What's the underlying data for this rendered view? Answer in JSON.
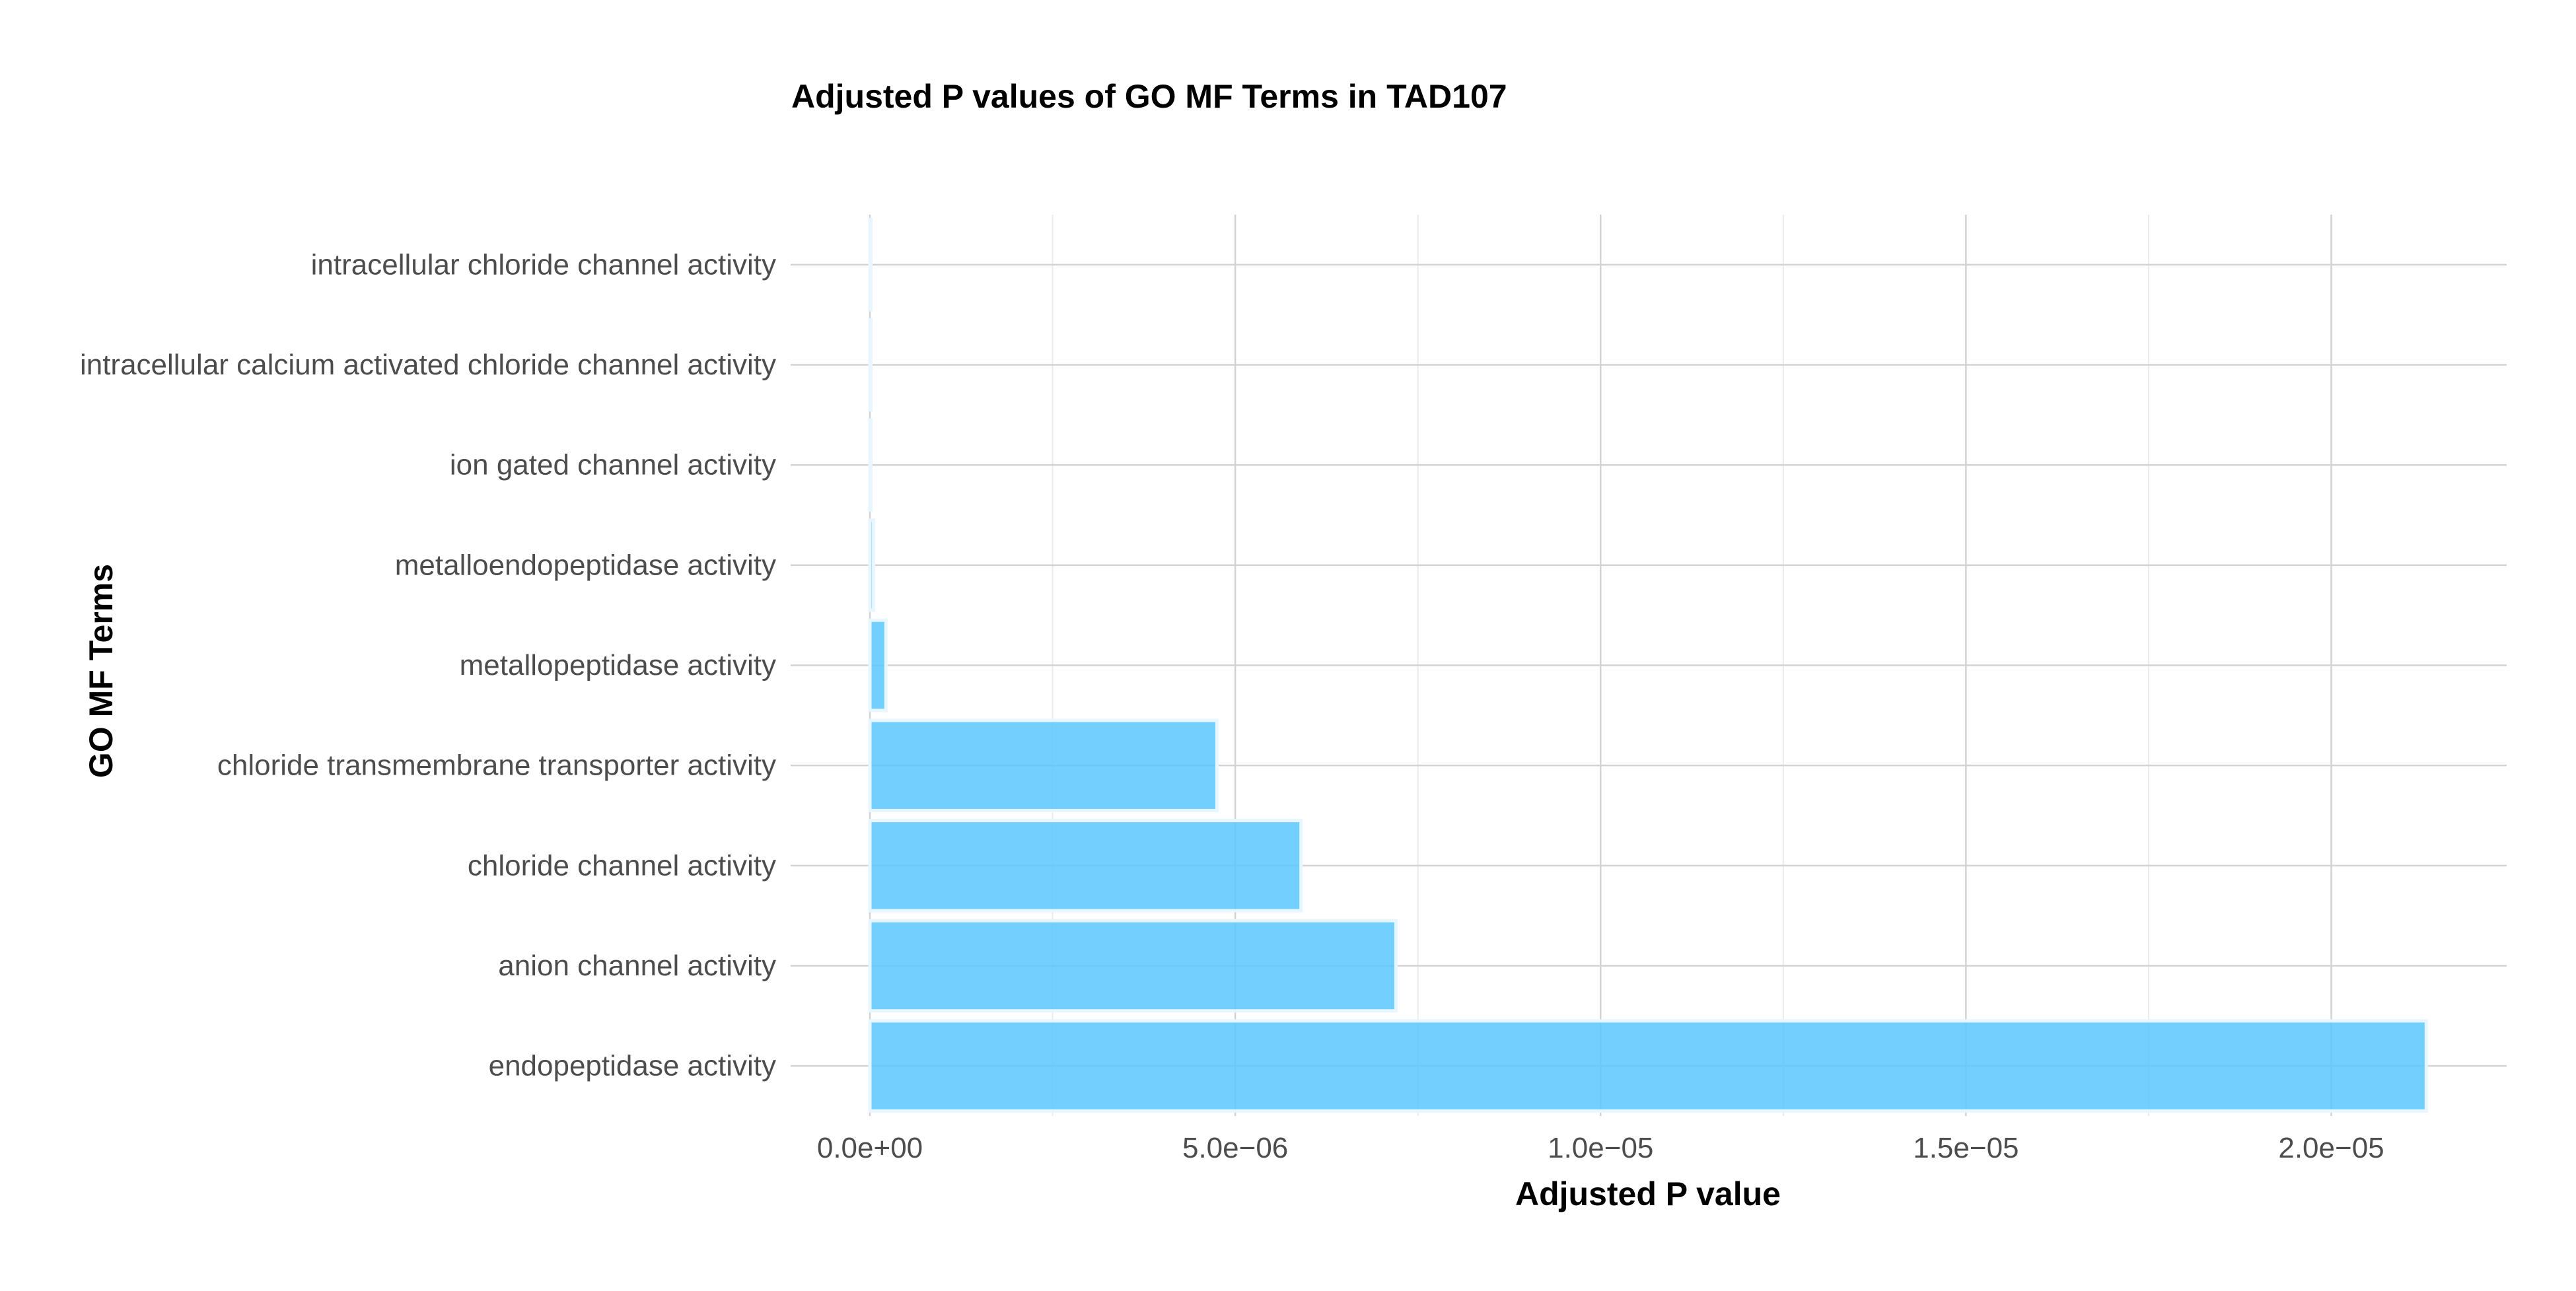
{
  "chart_data": {
    "type": "bar",
    "orientation": "horizontal",
    "title": "Adjusted P values of GO MF Terms in TAD107",
    "xlabel": "Adjusted P value",
    "ylabel": "GO MF Terms",
    "categories": [
      "endopeptidase activity",
      "anion channel activity",
      "chloride channel activity",
      "chloride transmembrane transporter activity",
      "metallopeptidase activity",
      "metalloendopeptidase activity",
      "ion gated channel activity",
      "intracellular calcium activated chloride channel activity",
      "intracellular chloride channel activity"
    ],
    "values": [
      2.13e-05,
      7.2e-06,
      5.9e-06,
      4.75e-06,
      2.2e-07,
      5e-08,
      5e-09,
      2e-09,
      1e-09
    ],
    "xlim": [
      0,
      2.24e-05
    ],
    "x_ticks": [
      0,
      5e-06,
      1e-05,
      1.5e-05,
      2e-05
    ],
    "x_tick_labels": [
      "0.0e+00",
      "5.0e−06",
      "1.0e−05",
      "1.5e−05",
      "2.0e−05"
    ],
    "grid": true,
    "bar_color": "#5bc7fd",
    "bar_outline_color": "#e8f6ff",
    "legend": "none"
  }
}
